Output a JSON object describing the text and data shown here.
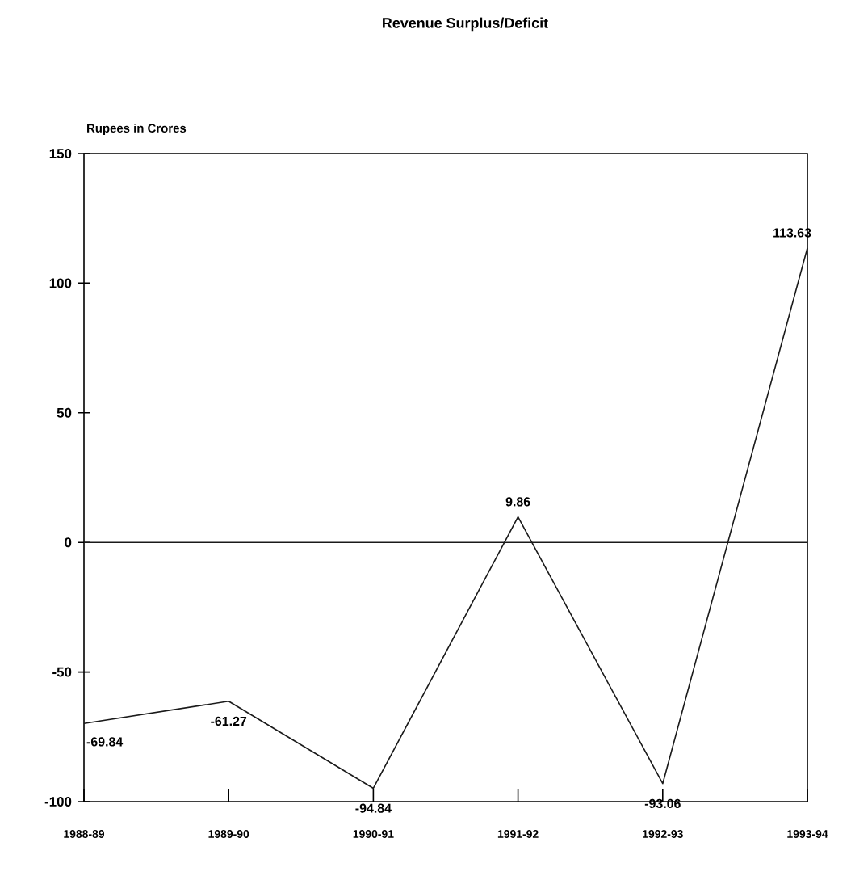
{
  "chart_data": {
    "type": "line",
    "title": "Revenue Surplus/Deficit",
    "ylabel": "Rupees in Crores",
    "categories": [
      "1988-89",
      "1989-90",
      "1990-91",
      "1991-92",
      "1992-93",
      "1993-94"
    ],
    "values": [
      -69.84,
      -61.27,
      -94.84,
      9.86,
      -93.06,
      113.63
    ],
    "color": "#1a1a1a",
    "ylim": [
      -100,
      150
    ],
    "yticks": [
      -100,
      -50,
      0,
      50,
      100,
      150
    ],
    "ref_lines": [
      {
        "axis": "y",
        "value": 0,
        "color": "#1a1a1a"
      }
    ],
    "data_labels": true,
    "marker": "none",
    "line_style": "solid"
  }
}
